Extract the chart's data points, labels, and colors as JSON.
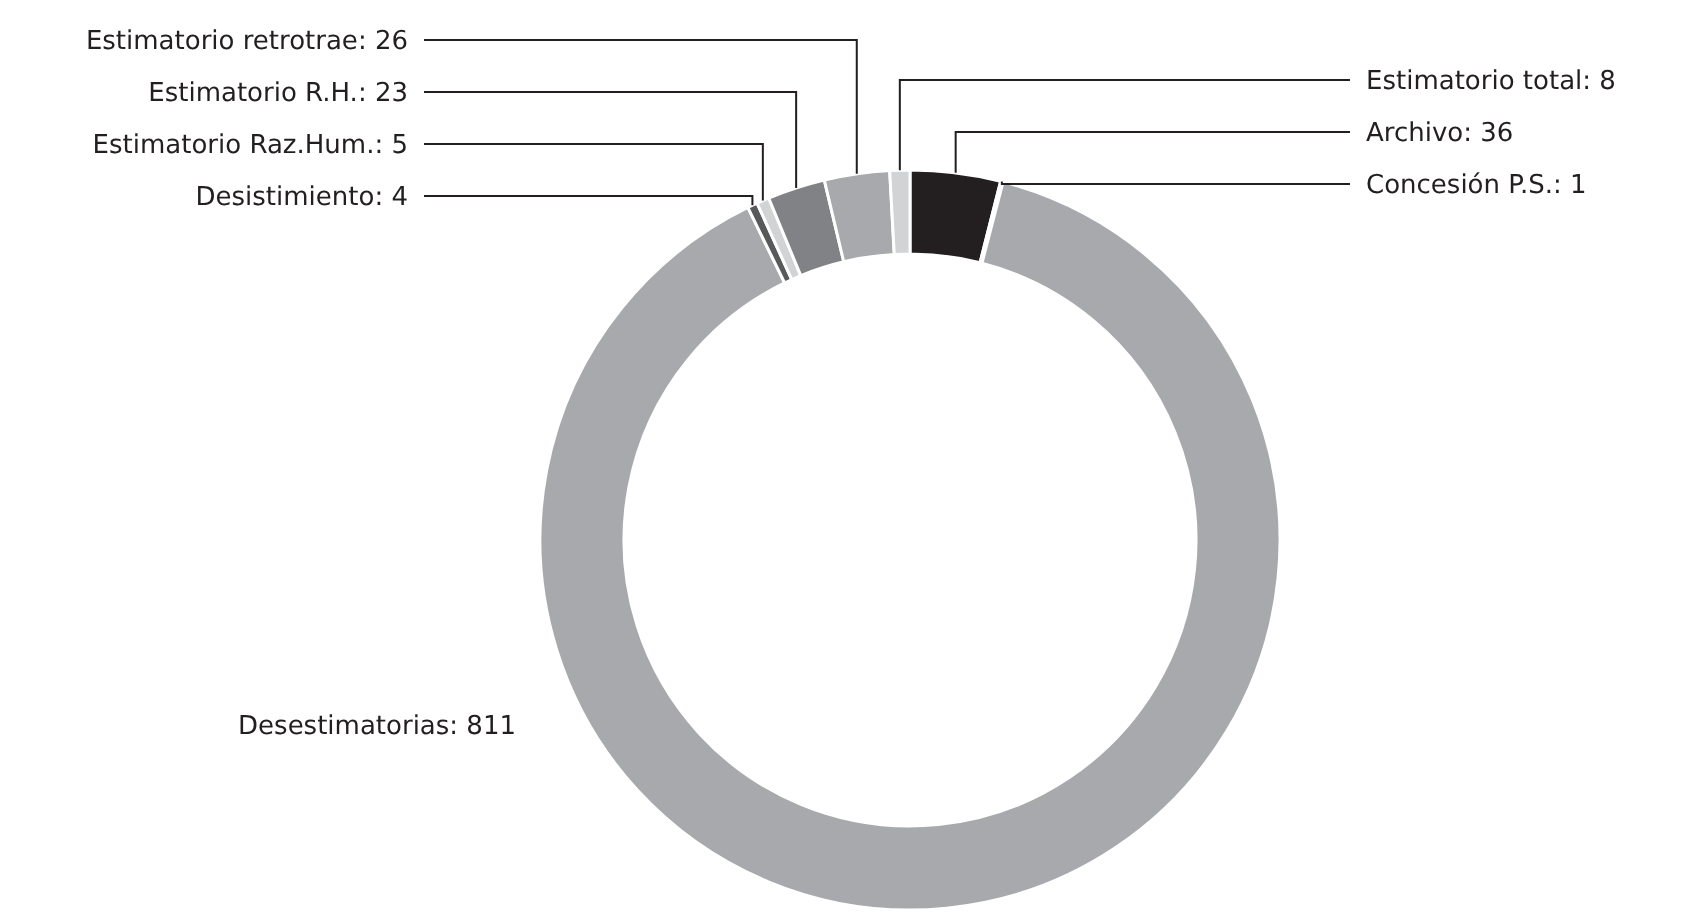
{
  "chart_data": {
    "type": "donut",
    "categories": [
      "Archivo",
      "Concesión P.S.",
      "Desestimatorias",
      "Desistimiento",
      "Estimatorio Raz.Hum.",
      "Estimatorio R.H.",
      "Estimatorio retrotrae",
      "Estimatorio total"
    ],
    "values": [
      36,
      1,
      811,
      4,
      5,
      23,
      26,
      8
    ],
    "colors": [
      "#231f20",
      "#e6e7e8",
      "#a7a9ac",
      "#58595b",
      "#d1d3d4",
      "#808285",
      "#a7a9ac",
      "#d1d3d4"
    ],
    "value_labels": [
      ": 36",
      ": 1",
      ": 811",
      ": 4",
      ": 5",
      ": 23",
      ": 26",
      ": 8"
    ]
  }
}
